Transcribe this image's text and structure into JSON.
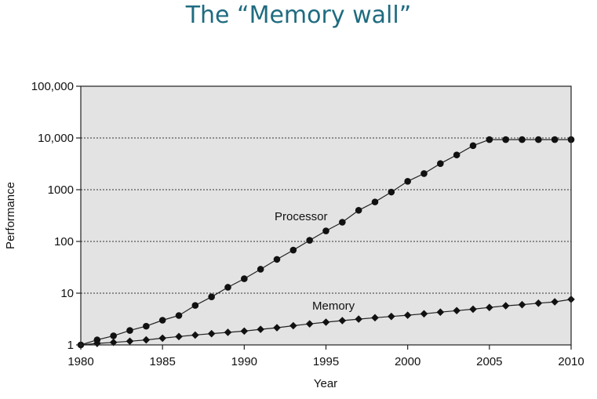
{
  "slide": {
    "title": "The “Memory wall”"
  },
  "chart_data": {
    "type": "line",
    "xlabel": "Year",
    "ylabel": "Performance",
    "x_ticks": [
      "1980",
      "1985",
      "1990",
      "1995",
      "2000",
      "2005",
      "2010"
    ],
    "y_ticks": [
      "1",
      "10",
      "100",
      "1000",
      "10,000",
      "100,000"
    ],
    "y_tick_values": [
      1,
      10,
      100,
      1000,
      10000,
      100000
    ],
    "xlim": [
      1980,
      2010
    ],
    "ylim": [
      1,
      100000
    ],
    "y_scale": "log",
    "grid": "horizontal-dotted",
    "background": "#e3e3e3",
    "series": [
      {
        "name": "Processor",
        "marker": "circle",
        "x": [
          1980,
          1981,
          1982,
          1983,
          1984,
          1985,
          1986,
          1987,
          1988,
          1989,
          1990,
          1991,
          1992,
          1993,
          1994,
          1995,
          1996,
          1997,
          1998,
          1999,
          2000,
          2001,
          2002,
          2003,
          2004,
          2005,
          2006,
          2007,
          2008,
          2009,
          2010
        ],
        "values": [
          1,
          1.25,
          1.5,
          1.9,
          2.3,
          3,
          3.7,
          5.8,
          8.5,
          13,
          19,
          29,
          45,
          68,
          105,
          160,
          235,
          400,
          580,
          900,
          1450,
          2050,
          3200,
          4700,
          7100,
          9300,
          9300,
          9300,
          9300,
          9300,
          9300
        ]
      },
      {
        "name": "Memory",
        "marker": "diamond",
        "x": [
          1980,
          1981,
          1982,
          1983,
          1984,
          1985,
          1986,
          1987,
          1988,
          1989,
          1990,
          1991,
          1992,
          1993,
          1994,
          1995,
          1996,
          1997,
          1998,
          1999,
          2000,
          2001,
          2002,
          2003,
          2004,
          2005,
          2006,
          2007,
          2008,
          2009,
          2010
        ],
        "values": [
          1,
          1.07,
          1.12,
          1.18,
          1.25,
          1.35,
          1.45,
          1.55,
          1.65,
          1.75,
          1.85,
          2.0,
          2.15,
          2.35,
          2.55,
          2.75,
          2.95,
          3.15,
          3.35,
          3.55,
          3.75,
          4.0,
          4.3,
          4.6,
          4.9,
          5.3,
          5.7,
          6.0,
          6.4,
          6.8,
          7.6
        ]
      }
    ]
  }
}
